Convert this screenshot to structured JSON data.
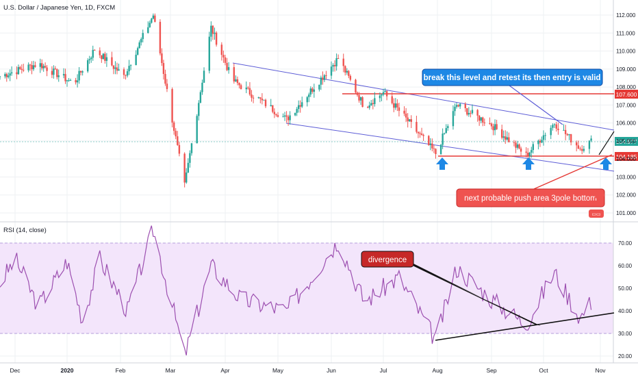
{
  "header": {
    "symbol_title": "U.S. Dollar / Japanese Yen, 1D, FXCM"
  },
  "rsi_panel": {
    "label": "RSI (14, close)"
  },
  "annotations": {
    "break_note": "break this level and retest its then entry is valid",
    "push_note": "next probable push area 3pole bottom",
    "divergence_note": "divergence"
  },
  "price_tags": {
    "resistance": "107.600",
    "current": "104.977",
    "support": "104.185"
  },
  "colors": {
    "bull": "#26a69a",
    "bear": "#ef5350",
    "channel": "#5b5bd6",
    "level": "#e53935",
    "rsi_line": "#9c4fb0",
    "rsi_band": "#f3e5fb",
    "arrow": "#1e88e5"
  },
  "chart_data": [
    {
      "type": "candlestick",
      "title": "U.S. Dollar / Japanese Yen, 1D, FXCM",
      "y_ticks": [
        "101.000",
        "102.000",
        "103.000",
        "104.000",
        "105.000",
        "106.000",
        "107.000",
        "108.000",
        "109.000",
        "110.000",
        "111.000",
        "112.000"
      ],
      "ylim": [
        100.6,
        112.4
      ],
      "x_ticks": [
        "Dec",
        "2020",
        "Feb",
        "Mar",
        "Apr",
        "May",
        "Jun",
        "Jul",
        "Aug",
        "Sep",
        "Oct",
        "Nov"
      ],
      "approx_close_path": [
        {
          "date": "2019-11-22",
          "close": 108.6
        },
        {
          "date": "2019-12-15",
          "close": 109.3
        },
        {
          "date": "2020-01-05",
          "close": 108.2
        },
        {
          "date": "2020-01-17",
          "close": 110.1
        },
        {
          "date": "2020-02-03",
          "close": 108.6
        },
        {
          "date": "2020-02-20",
          "close": 112.0
        },
        {
          "date": "2020-03-09",
          "close": 102.5
        },
        {
          "date": "2020-03-24",
          "close": 111.3
        },
        {
          "date": "2020-04-05",
          "close": 108.4
        },
        {
          "date": "2020-05-06",
          "close": 106.2
        },
        {
          "date": "2020-06-05",
          "close": 109.6
        },
        {
          "date": "2020-06-20",
          "close": 106.9
        },
        {
          "date": "2020-07-01",
          "close": 107.7
        },
        {
          "date": "2020-07-31",
          "close": 104.3
        },
        {
          "date": "2020-08-12",
          "close": 107.0
        },
        {
          "date": "2020-09-01",
          "close": 105.9
        },
        {
          "date": "2020-09-21",
          "close": 104.2
        },
        {
          "date": "2020-10-07",
          "close": 106.0
        },
        {
          "date": "2020-10-21",
          "close": 104.6
        },
        {
          "date": "2020-10-27",
          "close": 104.98
        }
      ],
      "levels": [
        107.6,
        104.185
      ],
      "last_price": 104.977
    },
    {
      "type": "line",
      "title": "RSI (14, close)",
      "y_ticks": [
        "20.00",
        "30.00",
        "40.00",
        "50.00",
        "60.00",
        "70.00"
      ],
      "ylim": [
        18,
        75
      ],
      "band": [
        30,
        70
      ],
      "approx_values": [
        {
          "date": "2019-11-22",
          "value": 52
        },
        {
          "date": "2019-12-01",
          "value": 63
        },
        {
          "date": "2019-12-15",
          "value": 42
        },
        {
          "date": "2020-01-01",
          "value": 62
        },
        {
          "date": "2020-01-10",
          "value": 36
        },
        {
          "date": "2020-01-20",
          "value": 63
        },
        {
          "date": "2020-02-05",
          "value": 40
        },
        {
          "date": "2020-02-20",
          "value": 76
        },
        {
          "date": "2020-03-05",
          "value": 33
        },
        {
          "date": "2020-03-09",
          "value": 20
        },
        {
          "date": "2020-03-24",
          "value": 60
        },
        {
          "date": "2020-04-10",
          "value": 45
        },
        {
          "date": "2020-05-06",
          "value": 40
        },
        {
          "date": "2020-06-05",
          "value": 71
        },
        {
          "date": "2020-06-20",
          "value": 44
        },
        {
          "date": "2020-07-10",
          "value": 55
        },
        {
          "date": "2020-07-31",
          "value": 27
        },
        {
          "date": "2020-08-12",
          "value": 59
        },
        {
          "date": "2020-09-01",
          "value": 45
        },
        {
          "date": "2020-09-21",
          "value": 34
        },
        {
          "date": "2020-10-07",
          "value": 57
        },
        {
          "date": "2020-10-21",
          "value": 37
        },
        {
          "date": "2020-10-27",
          "value": 44
        }
      ]
    }
  ]
}
